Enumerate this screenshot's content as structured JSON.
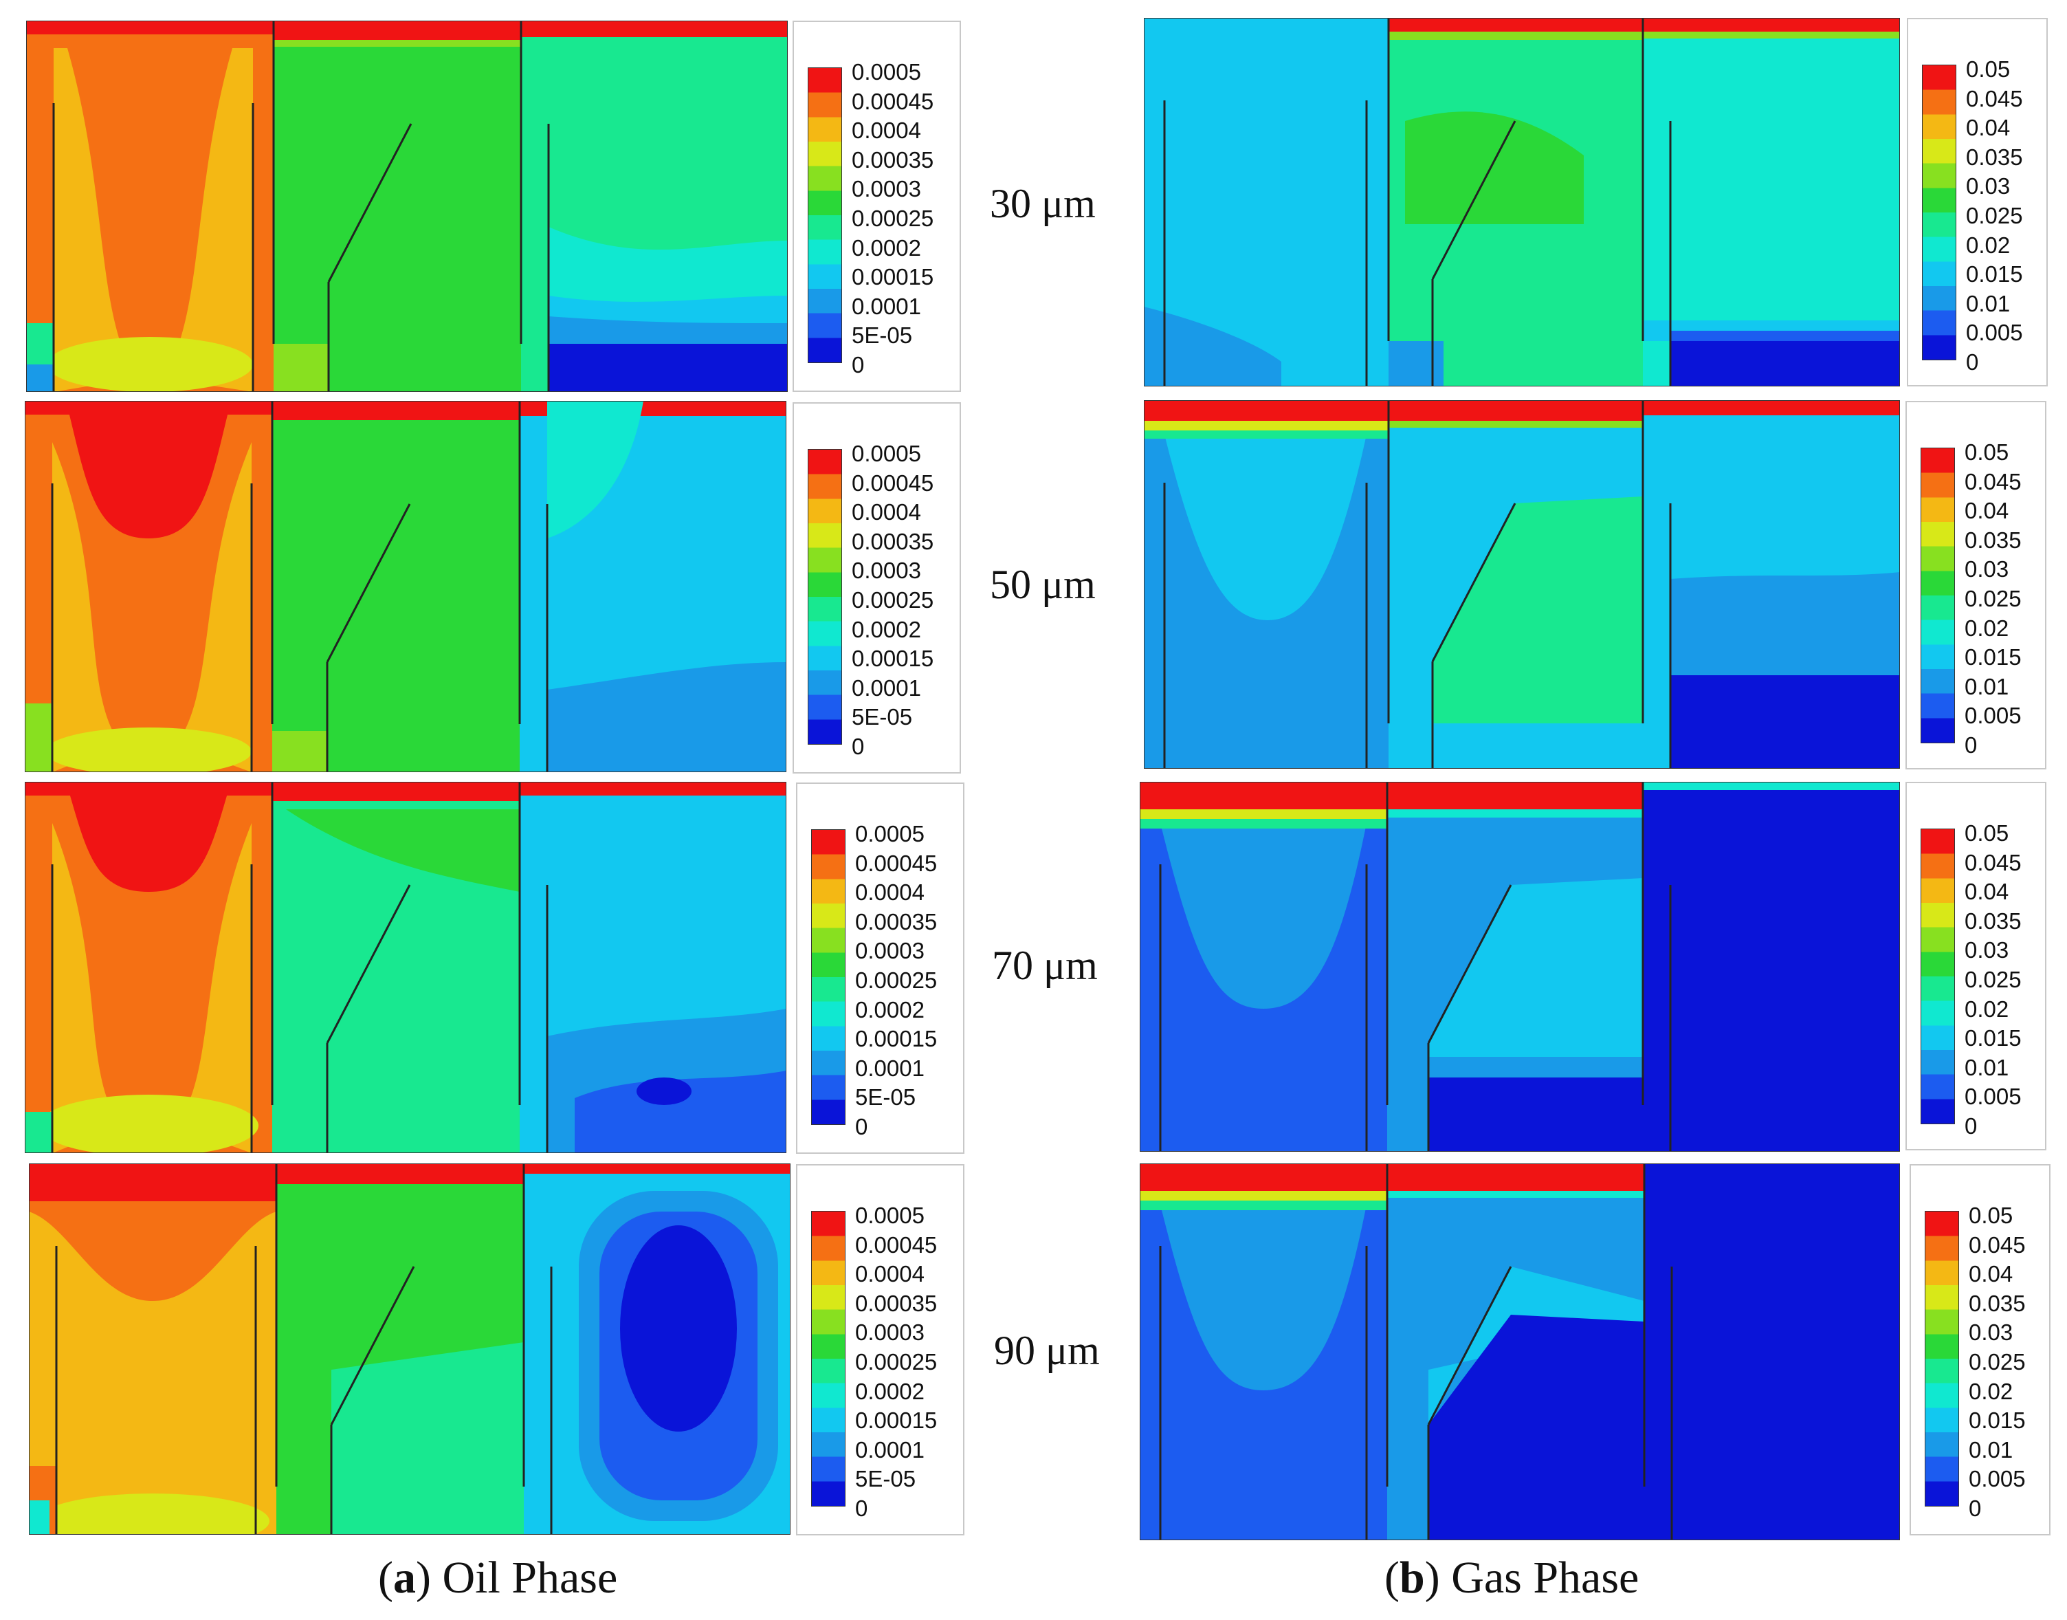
{
  "oil": {
    "caption_letter": "a",
    "caption_text": "Oil Phase",
    "legend_ticks": [
      "0.0005",
      "0.00045",
      "0.0004",
      "0.00035",
      "0.0003",
      "0.00025",
      "0.0002",
      "0.00015",
      "0.0001",
      "5E-05",
      "0"
    ]
  },
  "gas": {
    "caption_letter": "b",
    "caption_text": "Gas Phase",
    "legend_ticks": [
      "0.05",
      "0.045",
      "0.04",
      "0.035",
      "0.03",
      "0.025",
      "0.02",
      "0.015",
      "0.01",
      "0.005",
      "0"
    ]
  },
  "rows": [
    {
      "label": "30 μm"
    },
    {
      "label": "50 μm"
    },
    {
      "label": "70 μm"
    },
    {
      "label": "90 μm"
    }
  ],
  "colors": {
    "level_0": "#0a14d8",
    "level_1": "#1c5cf0",
    "level_2": "#199ae8",
    "level_3": "#12c8f0",
    "level_4": "#10e8d0",
    "level_5": "#18e890",
    "level_6": "#2ad838",
    "level_7": "#88e020",
    "level_8": "#d8e818",
    "level_9": "#f4b814",
    "level_10": "#f57014",
    "level_11": "#f01414"
  }
}
